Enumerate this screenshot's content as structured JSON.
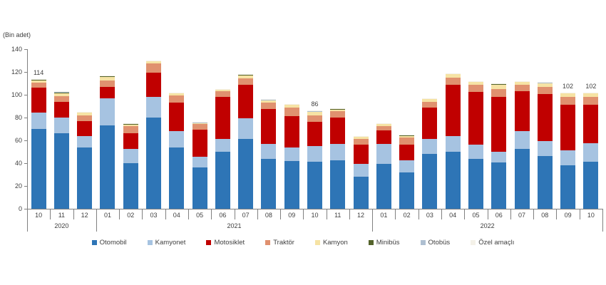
{
  "chart_data": {
    "type": "bar",
    "stacked": true,
    "unit_label": "(Bin adet)",
    "ylim": [
      0,
      140
    ],
    "yticks": [
      0,
      20,
      40,
      60,
      80,
      100,
      120,
      140
    ],
    "grid": false,
    "legend_position": "bottom",
    "categories": [
      "10",
      "11",
      "12",
      "01",
      "02",
      "03",
      "04",
      "05",
      "06",
      "07",
      "08",
      "09",
      "10",
      "11",
      "12",
      "01",
      "02",
      "03",
      "04",
      "05",
      "06",
      "07",
      "08",
      "09",
      "10"
    ],
    "year_groups": [
      {
        "label": "2020",
        "count": 3
      },
      {
        "label": "2021",
        "count": 12
      },
      {
        "label": "2022",
        "count": 10
      }
    ],
    "series": [
      {
        "name": "Otomobil",
        "color": "#2e75b6",
        "values": [
          70,
          66,
          54,
          73,
          40,
          80,
          54,
          36,
          50,
          61.5,
          44,
          42,
          41,
          42.5,
          28,
          39.5,
          32,
          48,
          50,
          44,
          40.5,
          52.5,
          46,
          38,
          41.5
        ]
      },
      {
        "name": "Kamyonet",
        "color": "#a6c3e1",
        "values": [
          14.5,
          14,
          10,
          24,
          12.5,
          18,
          14,
          9.4,
          11.5,
          18,
          13,
          12,
          14,
          14.5,
          11.5,
          17.5,
          10.5,
          13.5,
          13.5,
          12.5,
          9.5,
          15.5,
          13.5,
          13.5,
          16
        ]
      },
      {
        "name": "Motosiklet",
        "color": "#c00000",
        "values": [
          21.5,
          14,
          13,
          10,
          13.5,
          21.5,
          25,
          24,
          36.5,
          29,
          30.5,
          27,
          21,
          23,
          16.5,
          11.5,
          14,
          27,
          45,
          46,
          48,
          35,
          41,
          39.5,
          33.5
        ]
      },
      {
        "name": "Traktör",
        "color": "#e0916f",
        "values": [
          4.8,
          5,
          4.8,
          5.3,
          6.5,
          7.7,
          6.5,
          4.8,
          5,
          6,
          5.5,
          8,
          6,
          5.5,
          5.5,
          4.2,
          6,
          5,
          6.5,
          6.5,
          7,
          5.5,
          6.5,
          7,
          7
        ]
      },
      {
        "name": "Kamyon",
        "color": "#f6e3a4",
        "values": [
          2,
          2.5,
          2.4,
          3.5,
          1.5,
          2.3,
          1.8,
          1.3,
          1.3,
          2.7,
          1.9,
          2,
          3,
          1.8,
          2,
          1.7,
          1.5,
          3,
          3,
          2.5,
          4,
          3,
          3.5,
          3.5,
          3.5
        ]
      },
      {
        "name": "Minibüs",
        "color": "#54632b",
        "values": [
          0.6,
          0.7,
          0.5,
          0.6,
          0.5,
          0.3,
          0.4,
          0.3,
          0.4,
          0.5,
          0.6,
          0.6,
          0.6,
          0.4,
          0.3,
          0.3,
          0.5,
          0.3,
          0.6,
          0.3,
          0.6,
          0.3,
          0.3,
          0.3,
          0.3
        ]
      },
      {
        "name": "Otobüs",
        "color": "#aebfd1",
        "values": [
          0.4,
          0.5,
          0.2,
          0.4,
          0.3,
          0.1,
          0.2,
          0.1,
          0.2,
          0.2,
          0.3,
          0.3,
          0.3,
          0.2,
          0.1,
          0.2,
          0.3,
          0.1,
          0.3,
          0.1,
          0.3,
          0.1,
          0.1,
          0.1,
          0.1
        ]
      },
      {
        "name": "Özel amaçlı",
        "color": "#f4f1e8",
        "values": [
          0.2,
          0.3,
          0.1,
          0.2,
          0.2,
          0.1,
          0.1,
          0.1,
          0.1,
          0.1,
          0.2,
          0.1,
          0.1,
          0.1,
          0.1,
          0.1,
          0.2,
          0.1,
          0.1,
          0.1,
          0.1,
          0.1,
          0.1,
          0.1,
          0.1
        ]
      }
    ],
    "bar_total_labels": [
      {
        "index": 0,
        "text": "114"
      },
      {
        "index": 12,
        "text": "86"
      },
      {
        "index": 23,
        "text": "102"
      },
      {
        "index": 24,
        "text": "102"
      }
    ]
  }
}
